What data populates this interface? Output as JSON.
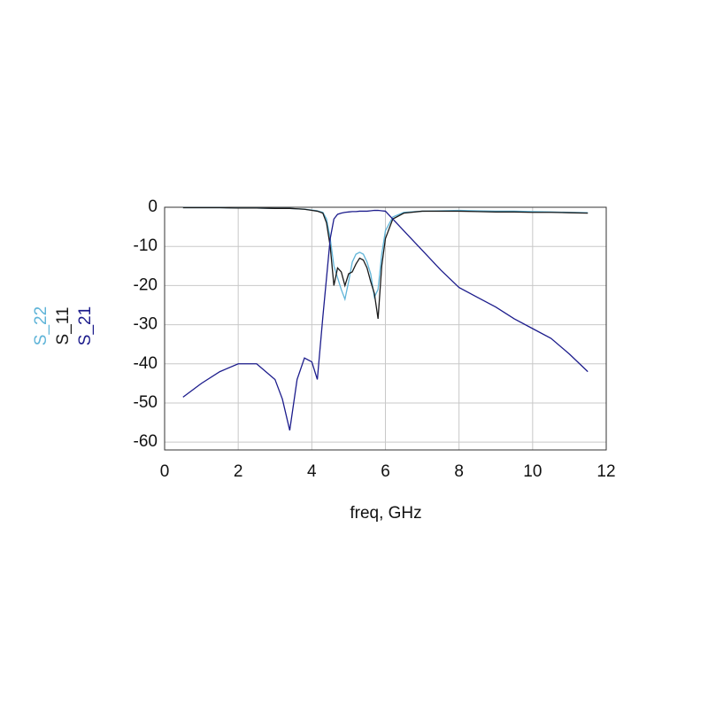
{
  "chart_data": {
    "type": "line",
    "xlabel": "freq, GHz",
    "x": [
      0.5,
      1,
      1.5,
      2,
      2.5,
      3,
      3.2,
      3.4,
      3.6,
      3.8,
      4.0,
      4.15,
      4.3,
      4.4,
      4.5,
      4.6,
      4.7,
      4.8,
      4.9,
      5.0,
      5.1,
      5.2,
      5.3,
      5.4,
      5.5,
      5.6,
      5.7,
      5.8,
      5.9,
      6.0,
      6.2,
      6.5,
      7,
      7.5,
      8,
      8.5,
      9,
      9.5,
      10,
      10.5,
      11,
      11.5
    ],
    "series": [
      {
        "name": "S_22",
        "color": "#5fb4d8",
        "values": [
          -0.1,
          -0.1,
          -0.1,
          -0.2,
          -0.2,
          -0.3,
          -0.3,
          -0.3,
          -0.4,
          -0.5,
          -0.7,
          -0.9,
          -1.3,
          -3,
          -8,
          -15,
          -18,
          -21,
          -23.5,
          -19,
          -14,
          -12,
          -11.5,
          -12,
          -14,
          -17,
          -23,
          -21,
          -12,
          -6,
          -2.5,
          -1.3,
          -1,
          -0.9,
          -0.8,
          -0.9,
          -1,
          -1,
          -1.1,
          -1.2,
          -1.3,
          -1.4
        ]
      },
      {
        "name": "S_11",
        "color": "#1a1a1a",
        "values": [
          -0.1,
          -0.1,
          -0.1,
          -0.2,
          -0.2,
          -0.3,
          -0.3,
          -0.3,
          -0.4,
          -0.5,
          -0.8,
          -1,
          -1.5,
          -4,
          -10,
          -20,
          -15.5,
          -16.5,
          -20,
          -17,
          -16.5,
          -14.5,
          -13,
          -13.5,
          -15.5,
          -19,
          -22,
          -28.5,
          -15,
          -8,
          -3,
          -1.5,
          -1,
          -1,
          -1,
          -1.1,
          -1.2,
          -1.2,
          -1.3,
          -1.3,
          -1.4,
          -1.5
        ]
      },
      {
        "name": "S_21",
        "color": "#1c1c8c",
        "values": [
          -48.5,
          -45,
          -42,
          -40,
          -40,
          -44,
          -49,
          -57,
          -44,
          -38.5,
          -39.5,
          -44,
          -28,
          -18,
          -8,
          -3,
          -1.8,
          -1.5,
          -1.3,
          -1.2,
          -1.1,
          -1.1,
          -1,
          -1,
          -1,
          -0.9,
          -0.8,
          -0.8,
          -0.9,
          -1,
          -3,
          -6,
          -11,
          -16,
          -20.5,
          -23,
          -25.5,
          -28.5,
          -31,
          -33.5,
          -37.5,
          -42
        ]
      }
    ],
    "xlim": [
      0,
      12
    ],
    "ylim": [
      -62,
      0
    ],
    "xticks": [
      0,
      2,
      4,
      6,
      8,
      10,
      12
    ],
    "yticks": [
      0,
      -10,
      -20,
      -30,
      -40,
      -50,
      -60
    ],
    "grid": true
  }
}
